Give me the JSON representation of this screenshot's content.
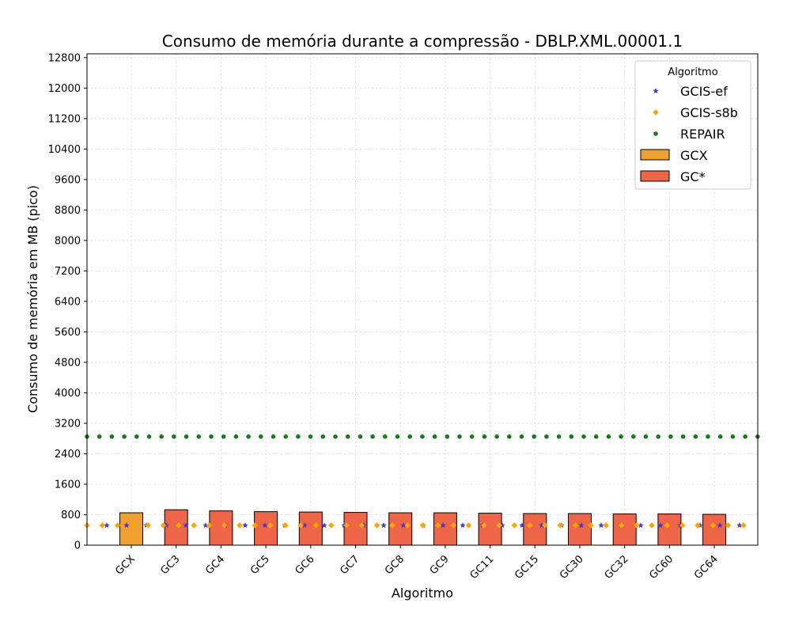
{
  "chart_data": {
    "type": "bar",
    "title": "Consumo de memória durante a compressão -  DBLP.XML.00001.1",
    "xlabel": "Algoritmo",
    "ylabel": "Consumo de memória em MB (pico)",
    "ylim": [
      0,
      12900
    ],
    "yticks": [
      0,
      800,
      1600,
      2400,
      3200,
      4000,
      4800,
      5600,
      6400,
      7200,
      8000,
      8800,
      9600,
      10400,
      11200,
      12000,
      12800
    ],
    "grid": true,
    "categories": [
      "GCX",
      "GC3",
      "GC4",
      "GC5",
      "GC6",
      "GC7",
      "GC8",
      "GC9",
      "GC11",
      "GC15",
      "GC30",
      "GC32",
      "GC60",
      "GC64"
    ],
    "legend": {
      "title": "Algoritmo",
      "placement": "top-right",
      "entries": [
        "GCIS-ef",
        "GCIS-s8b",
        "REPAIR",
        "GCX",
        "GC*"
      ]
    },
    "bars": [
      {
        "name": "GCX",
        "color": "#f0a030",
        "values": [
          850,
          null,
          null,
          null,
          null,
          null,
          null,
          null,
          null,
          null,
          null,
          null,
          null,
          null
        ]
      },
      {
        "name": "GC*",
        "color": "#ef6548",
        "values": [
          null,
          930,
          900,
          880,
          870,
          860,
          850,
          850,
          840,
          830,
          830,
          820,
          820,
          810
        ]
      }
    ],
    "lines": [
      {
        "name": "GCIS-ef",
        "color": "#3a3ad6",
        "marker": "star",
        "value": 520
      },
      {
        "name": "GCIS-s8b",
        "color": "#ffa500",
        "marker": "diamond",
        "value": 520
      },
      {
        "name": "REPAIR",
        "color": "#1a7a1a",
        "marker": "circle",
        "value": 2850
      }
    ]
  }
}
